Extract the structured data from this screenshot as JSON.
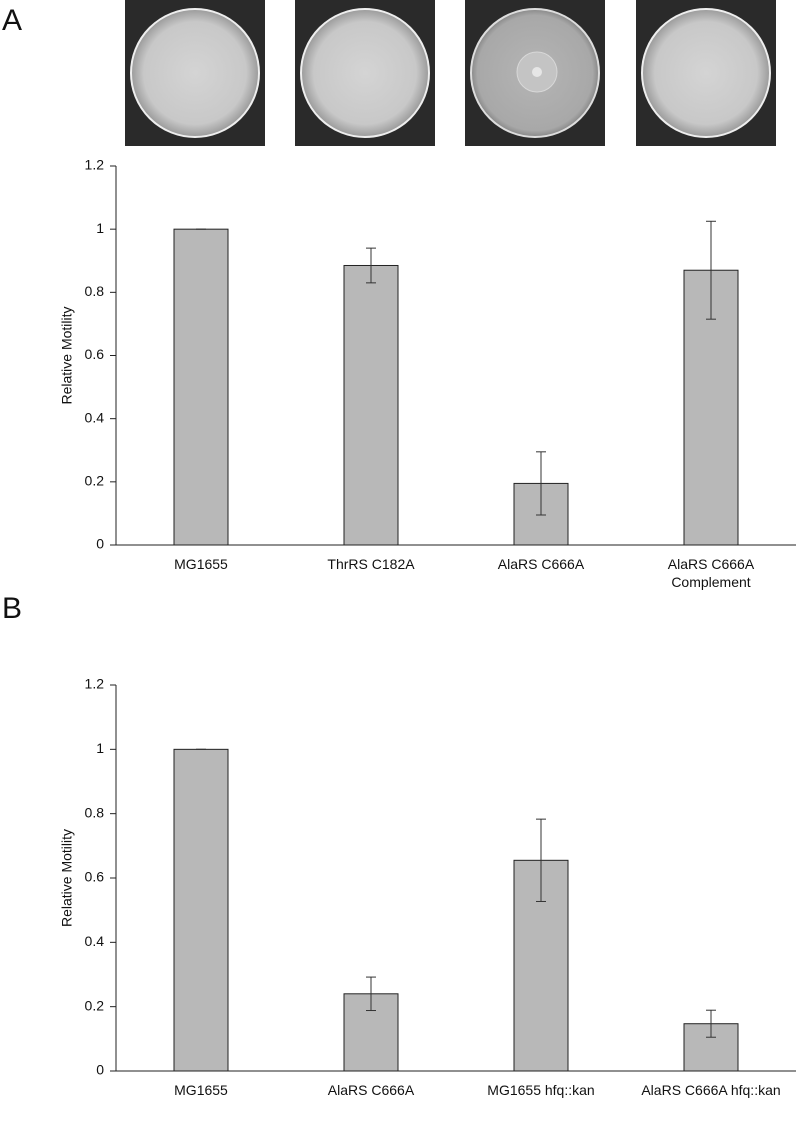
{
  "chart_data": [
    {
      "type": "bar",
      "panel_label": "A",
      "y_label": "Relative Motility",
      "categories": [
        "MG1655",
        "ThrRS C182A",
        "AlaRS C666A",
        "AlaRS C666A Complement"
      ],
      "values": [
        1,
        0.885,
        0.195,
        0.87
      ],
      "errors": [
        0,
        0.055,
        0.1,
        0.155
      ],
      "color": "#b8b8b8",
      "ylim": [
        0,
        1.2
      ],
      "yticks": [
        0,
        0.2,
        0.4,
        0.6,
        0.8,
        1,
        1.2
      ]
    },
    {
      "type": "bar",
      "panel_label": "B",
      "y_label": "Relative Motility",
      "categories": [
        "MG1655",
        "AlaRS C666A",
        "MG1655 hfq::kan",
        "AlaRS C666A hfq::kan"
      ],
      "values": [
        1,
        0.24,
        0.655,
        0.147
      ],
      "errors": [
        0,
        0.052,
        0.128,
        0.042
      ],
      "color": "#b8b8b8",
      "ylim": [
        0,
        1.2
      ],
      "yticks": [
        0,
        0.2,
        0.4,
        0.6,
        0.8,
        1,
        1.2
      ]
    }
  ]
}
